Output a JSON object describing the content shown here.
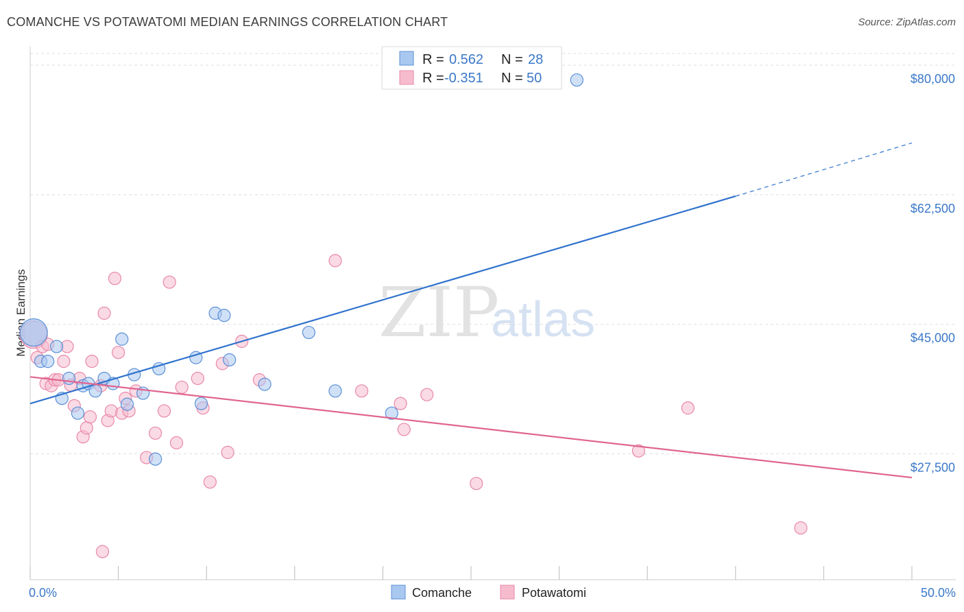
{
  "title": "COMANCHE VS POTAWATOMI MEDIAN EARNINGS CORRELATION CHART",
  "source": "Source: ZipAtlas.com",
  "watermark": {
    "part1": "ZIP",
    "part2": "atlas"
  },
  "legend_top": [
    {
      "r_label": "R =",
      "r_value": "0.562",
      "n_label": "N =",
      "n_value": "28"
    },
    {
      "r_label": "R =",
      "r_value": "-0.351",
      "n_label": "N =",
      "n_value": "50"
    }
  ],
  "colors": {
    "comanche_fill": "#a9c8f0",
    "comanche_stroke": "#5b8fd6",
    "comanche_line": "#2f72cc",
    "potawatomi_fill": "#f6bccd",
    "potawatomi_stroke": "#e888a8",
    "potawatomi_line": "#e0658f",
    "axis_label": "#3a78c9",
    "grid": "#dddddd"
  },
  "chart_data": {
    "type": "scatter",
    "title": "COMANCHE VS POTAWATOMI MEDIAN EARNINGS CORRELATION CHART",
    "xlabel": "",
    "ylabel": "Median Earnings",
    "xlim": [
      0,
      50
    ],
    "ylim": [
      10500,
      82500
    ],
    "x_tick_labels": [
      {
        "value": 0,
        "label": "0.0%"
      },
      {
        "value": 50,
        "label": "50.0%"
      }
    ],
    "y_ticks": [
      {
        "value": 27500,
        "label": "$27,500"
      },
      {
        "value": 45000,
        "label": "$45,000"
      },
      {
        "value": 62500,
        "label": "$62,500"
      },
      {
        "value": 80000,
        "label": "$80,000"
      }
    ],
    "x_minor_ticks": [
      0,
      5,
      10,
      15,
      20,
      25,
      30,
      35,
      40,
      45,
      50
    ],
    "grid": true,
    "legend_position": "bottom-center",
    "series": [
      {
        "name": "Comanche",
        "R": 0.562,
        "N": 28,
        "points": [
          [
            0.2,
            43900
          ],
          [
            0.6,
            40000
          ],
          [
            1.0,
            40000
          ],
          [
            1.5,
            42000
          ],
          [
            1.8,
            35000
          ],
          [
            2.2,
            37700
          ],
          [
            2.7,
            33000
          ],
          [
            3.0,
            36700
          ],
          [
            3.3,
            37000
          ],
          [
            3.7,
            36000
          ],
          [
            4.2,
            37700
          ],
          [
            4.7,
            37000
          ],
          [
            5.2,
            43000
          ],
          [
            5.5,
            34200
          ],
          [
            5.9,
            38200
          ],
          [
            6.4,
            35700
          ],
          [
            7.3,
            39000
          ],
          [
            7.1,
            26800
          ],
          [
            9.4,
            40500
          ],
          [
            9.7,
            34300
          ],
          [
            10.5,
            46500
          ],
          [
            11.0,
            46200
          ],
          [
            11.3,
            40200
          ],
          [
            13.3,
            36900
          ],
          [
            15.8,
            43900
          ],
          [
            17.3,
            36000
          ],
          [
            20.5,
            33000
          ],
          [
            31.0,
            78000
          ]
        ],
        "trend": {
          "x0": 0,
          "y0": 34300,
          "x1": 40,
          "y1": 62300,
          "dashed_to_x": 50,
          "dashed_to_y": 69500
        }
      },
      {
        "name": "Potawatomi",
        "R": -0.351,
        "N": 50,
        "points": [
          [
            0.2,
            43600
          ],
          [
            0.4,
            40500
          ],
          [
            0.7,
            42000
          ],
          [
            0.9,
            37000
          ],
          [
            1.0,
            42300
          ],
          [
            1.2,
            36700
          ],
          [
            1.4,
            37500
          ],
          [
            1.6,
            37500
          ],
          [
            1.9,
            40000
          ],
          [
            2.1,
            42000
          ],
          [
            2.3,
            36800
          ],
          [
            2.5,
            34000
          ],
          [
            2.8,
            37700
          ],
          [
            3.0,
            29800
          ],
          [
            3.2,
            31000
          ],
          [
            3.4,
            32500
          ],
          [
            3.5,
            40000
          ],
          [
            4.0,
            36700
          ],
          [
            4.2,
            46500
          ],
          [
            4.4,
            32000
          ],
          [
            4.6,
            33300
          ],
          [
            4.8,
            51200
          ],
          [
            5.0,
            41200
          ],
          [
            5.2,
            33000
          ],
          [
            5.4,
            35000
          ],
          [
            5.6,
            33300
          ],
          [
            6.0,
            36000
          ],
          [
            6.6,
            27000
          ],
          [
            7.1,
            30300
          ],
          [
            7.6,
            33300
          ],
          [
            7.9,
            50700
          ],
          [
            8.3,
            29000
          ],
          [
            8.6,
            36500
          ],
          [
            9.5,
            37700
          ],
          [
            9.8,
            33700
          ],
          [
            10.2,
            23700
          ],
          [
            10.9,
            39700
          ],
          [
            11.2,
            27700
          ],
          [
            12.0,
            42700
          ],
          [
            13.0,
            37500
          ],
          [
            17.3,
            53600
          ],
          [
            18.8,
            36000
          ],
          [
            21.0,
            34300
          ],
          [
            21.2,
            30800
          ],
          [
            22.5,
            35500
          ],
          [
            25.3,
            23500
          ],
          [
            34.5,
            27900
          ],
          [
            37.3,
            33700
          ],
          [
            43.7,
            17500
          ],
          [
            4.1,
            14300
          ]
        ],
        "trend": {
          "x0": 0,
          "y0": 37900,
          "x1": 50,
          "y1": 24300
        }
      }
    ]
  }
}
